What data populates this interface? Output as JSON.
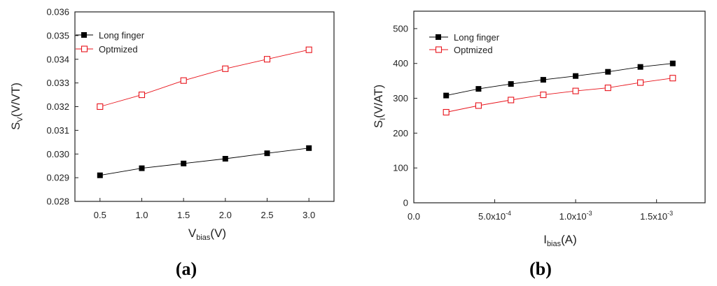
{
  "chart_data": [
    {
      "type": "line",
      "panel_label": "a",
      "xlabel": {
        "main": "V",
        "sub": "bias",
        "unit": "(V)"
      },
      "ylabel": {
        "main": "S",
        "sub": "V",
        "unit": "(V/VT)"
      },
      "xlim": [
        0.2,
        3.3
      ],
      "ylim": [
        0.028,
        0.036
      ],
      "xticks": [
        0.5,
        1.0,
        1.5,
        2.0,
        2.5,
        3.0
      ],
      "xtick_labels": [
        "0.5",
        "1.0",
        "1.5",
        "2.0",
        "2.5",
        "3.0"
      ],
      "yticks": [
        0.028,
        0.029,
        0.03,
        0.031,
        0.032,
        0.033,
        0.034,
        0.035,
        0.036
      ],
      "ytick_labels": [
        "0.028",
        "0.029",
        "0.030",
        "0.031",
        "0.032",
        "0.033",
        "0.034",
        "0.035",
        "0.036"
      ],
      "legend_position": "top-left",
      "series": [
        {
          "name": "Long finger",
          "marker": "filled-square",
          "color": "#000000",
          "x": [
            0.5,
            1.0,
            1.5,
            2.0,
            2.5,
            3.0
          ],
          "y": [
            0.0291,
            0.0294,
            0.0296,
            0.0298,
            0.03003,
            0.03025
          ]
        },
        {
          "name": "Optmized",
          "marker": "open-square",
          "color": "#e8131b",
          "x": [
            0.5,
            1.0,
            1.5,
            2.0,
            2.5,
            3.0
          ],
          "y": [
            0.032,
            0.0325,
            0.0331,
            0.0336,
            0.034,
            0.0344
          ]
        }
      ]
    },
    {
      "type": "line",
      "panel_label": "b",
      "xlabel": {
        "main": "I",
        "sub": "bias",
        "unit": "(A)"
      },
      "ylabel": {
        "main": "S",
        "sub": "I",
        "unit": "(V/AT)"
      },
      "xlim": [
        0.0,
        0.0018
      ],
      "ylim": [
        0,
        550
      ],
      "xticks": [
        0.0,
        0.0005,
        0.001,
        0.0015
      ],
      "xtick_labels": [
        {
          "mantissa": "0.0",
          "exp": ""
        },
        {
          "mantissa": "5.0x10",
          "exp": "-4"
        },
        {
          "mantissa": "1.0x10",
          "exp": "-3"
        },
        {
          "mantissa": "1.5x10",
          "exp": "-3"
        }
      ],
      "yticks": [
        0,
        100,
        200,
        300,
        400,
        500
      ],
      "ytick_labels": [
        "0",
        "100",
        "200",
        "300",
        "400",
        "500"
      ],
      "legend_position": "top-left",
      "series": [
        {
          "name": "Long finger",
          "marker": "filled-square",
          "color": "#000000",
          "x": [
            0.0002,
            0.0004,
            0.0006,
            0.0008,
            0.001,
            0.0012,
            0.0014,
            0.0016
          ],
          "y": [
            308,
            327,
            341,
            353,
            364,
            376,
            390,
            400
          ]
        },
        {
          "name": "Optmized",
          "marker": "open-square",
          "color": "#e8131b",
          "x": [
            0.0002,
            0.0004,
            0.0006,
            0.0008,
            0.001,
            0.0012,
            0.0014,
            0.0016
          ],
          "y": [
            260,
            279,
            295,
            310,
            321,
            330,
            345,
            358
          ]
        }
      ]
    }
  ]
}
